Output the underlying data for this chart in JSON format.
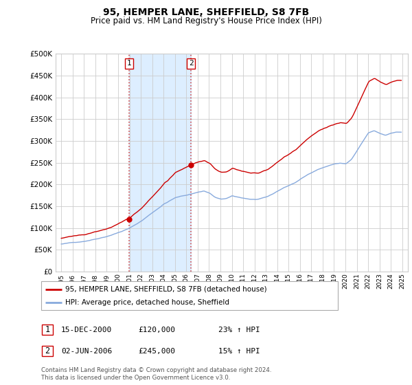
{
  "title": "95, HEMPER LANE, SHEFFIELD, S8 7FB",
  "subtitle": "Price paid vs. HM Land Registry's House Price Index (HPI)",
  "legend_line1": "95, HEMPER LANE, SHEFFIELD, S8 7FB (detached house)",
  "legend_line2": "HPI: Average price, detached house, Sheffield",
  "footnote": "Contains HM Land Registry data © Crown copyright and database right 2024.\nThis data is licensed under the Open Government Licence v3.0.",
  "transaction1_label": "1",
  "transaction1_date": "15-DEC-2000",
  "transaction1_price": "£120,000",
  "transaction1_hpi": "23% ↑ HPI",
  "transaction2_label": "2",
  "transaction2_date": "02-JUN-2006",
  "transaction2_price": "£245,000",
  "transaction2_hpi": "15% ↑ HPI",
  "sale1_year": 2000.958,
  "sale1_price": 120000,
  "sale2_year": 2006.417,
  "sale2_price": 245000,
  "line_color_red": "#cc0000",
  "line_color_blue": "#88aadd",
  "background_color": "#ffffff",
  "grid_color": "#cccccc",
  "shaded_region_color": "#ddeeff",
  "ylim": [
    0,
    500000
  ],
  "yticks": [
    0,
    50000,
    100000,
    150000,
    200000,
    250000,
    300000,
    350000,
    400000,
    450000,
    500000
  ],
  "ytick_labels": [
    "£0",
    "£50K",
    "£100K",
    "£150K",
    "£200K",
    "£250K",
    "£300K",
    "£350K",
    "£400K",
    "£450K",
    "£500K"
  ],
  "xlim_start": 1994.5,
  "xlim_end": 2025.5,
  "xtick_years": [
    1995,
    1996,
    1997,
    1998,
    1999,
    2000,
    2001,
    2002,
    2003,
    2004,
    2005,
    2006,
    2007,
    2008,
    2009,
    2010,
    2011,
    2012,
    2013,
    2014,
    2015,
    2016,
    2017,
    2018,
    2019,
    2020,
    2021,
    2022,
    2023,
    2024,
    2025
  ]
}
